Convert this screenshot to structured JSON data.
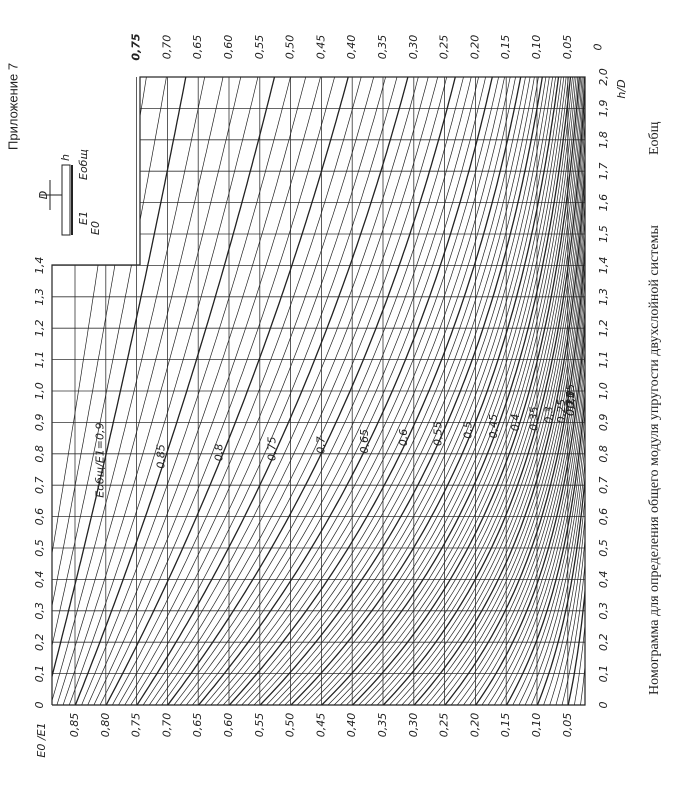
{
  "appendix": "Приложение 7",
  "caption": "Номограмма для определения общего модуля упругости двухслойной системы",
  "caption_symbol": "Eобщ",
  "axis_e_label": "E0 /E1",
  "axis_h_label": "h/D",
  "e_ticks_bottom": [
    "0,85",
    "0,80",
    "0,75",
    "0,70",
    "0,65",
    "0,60",
    "0,55",
    "0,50",
    "0,45",
    "0,40",
    "0,35",
    "0,30",
    "0,25",
    "0,20",
    "0,15",
    "0,10",
    "0,05"
  ],
  "e_ticks_top": [
    "0,75",
    "0,70",
    "0,65",
    "0,60",
    "0,55",
    "0,50",
    "0,45",
    "0,40",
    "0,35",
    "0,30",
    "0,25",
    "0,20",
    "0,15",
    "0,10",
    "0,05",
    "0"
  ],
  "h_ticks_left": [
    "0",
    "0,1",
    "0,2",
    "0,3",
    "0,4",
    "0,5",
    "0,6",
    "0,7",
    "0,8",
    "0,9",
    "1,0",
    "1,1",
    "1,2",
    "1,3",
    "1,4"
  ],
  "h_ticks_right": [
    "0",
    "0,1",
    "0,2",
    "0,3",
    "0,4",
    "0,5",
    "0,6",
    "0,7",
    "0,8",
    "0,9",
    "1,0",
    "1,1",
    "1,2",
    "1,3",
    "1,4",
    "1,5",
    "1,6",
    "1,7",
    "1,8",
    "1,9",
    "2,0"
  ],
  "curve_labels": [
    "Eобщ/E1=0,9",
    "0,85",
    "0,8",
    "0,75",
    "0,7",
    "0,65",
    "0,6",
    "0,55",
    "0,5",
    "0,45",
    "0,4",
    "0,35",
    "0,3",
    "0,25",
    "0,2",
    "0,15",
    "0,1",
    "0,05"
  ],
  "inset": {
    "d": "D",
    "e1": "E1",
    "e0": "E0",
    "eobsh": "Eобщ",
    "h": "h"
  }
}
